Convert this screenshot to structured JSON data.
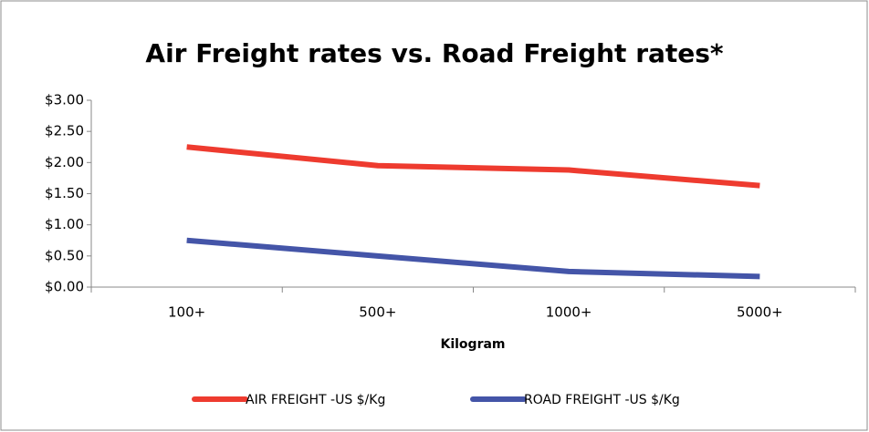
{
  "chart_data": {
    "type": "line",
    "title": "Air Freight rates vs. Road Freight rates*",
    "x_label": "Kilogram",
    "categories": [
      "100+",
      "500+",
      "1000+",
      "5000+"
    ],
    "series": [
      {
        "name": "AIR FREIGHT -US $/Kg",
        "color": "#ee3b2f",
        "values": [
          2.25,
          1.95,
          1.88,
          1.63
        ]
      },
      {
        "name": "ROAD FREIGHT -US $/Kg",
        "color": "#4455a8",
        "values": [
          0.75,
          0.5,
          0.25,
          0.17
        ]
      }
    ],
    "ylim": [
      0,
      3
    ],
    "yticks": [
      {
        "value": 0,
        "label": "$0.00"
      },
      {
        "value": 0.5,
        "label": "$0.50"
      },
      {
        "value": 1,
        "label": "$1.00"
      },
      {
        "value": 1.5,
        "label": "$1.50"
      },
      {
        "value": 2,
        "label": "$2.00"
      },
      {
        "value": 2.5,
        "label": "$2.50"
      },
      {
        "value": 3,
        "label": "$3.00"
      }
    ],
    "grid": false,
    "legend": "bottom"
  }
}
